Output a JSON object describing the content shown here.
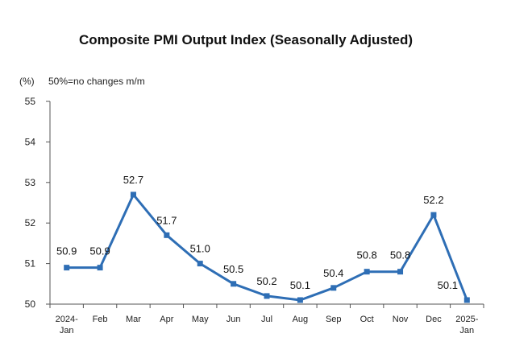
{
  "chart_data": {
    "type": "line",
    "title": "Composite PMI Output Index (Seasonally Adjusted)",
    "ylabel": "(%)",
    "note": "50%=no changes m/m",
    "categories": [
      [
        "2024-",
        "Jan"
      ],
      [
        "Feb"
      ],
      [
        "Mar"
      ],
      [
        "Apr"
      ],
      [
        "May"
      ],
      [
        "Jun"
      ],
      [
        "Jul"
      ],
      [
        "Aug"
      ],
      [
        "Sep"
      ],
      [
        "Oct"
      ],
      [
        "Nov"
      ],
      [
        "Dec"
      ],
      [
        "2025-",
        "Jan"
      ]
    ],
    "values": [
      50.9,
      50.9,
      52.7,
      51.7,
      51.0,
      50.5,
      50.2,
      50.1,
      50.4,
      50.8,
      50.8,
      52.2,
      50.1
    ],
    "data_labels": [
      "50.9",
      "50.9",
      "52.7",
      "51.7",
      "51.0",
      "50.5",
      "50.2",
      "50.1",
      "50.4",
      "50.8",
      "50.8",
      "52.2",
      "50.1"
    ],
    "ylim": [
      50,
      55
    ],
    "yticks": [
      "50",
      "51",
      "52",
      "53",
      "54",
      "55"
    ],
    "grid": false,
    "line_color": "#2E6EB5",
    "marker": "square"
  }
}
